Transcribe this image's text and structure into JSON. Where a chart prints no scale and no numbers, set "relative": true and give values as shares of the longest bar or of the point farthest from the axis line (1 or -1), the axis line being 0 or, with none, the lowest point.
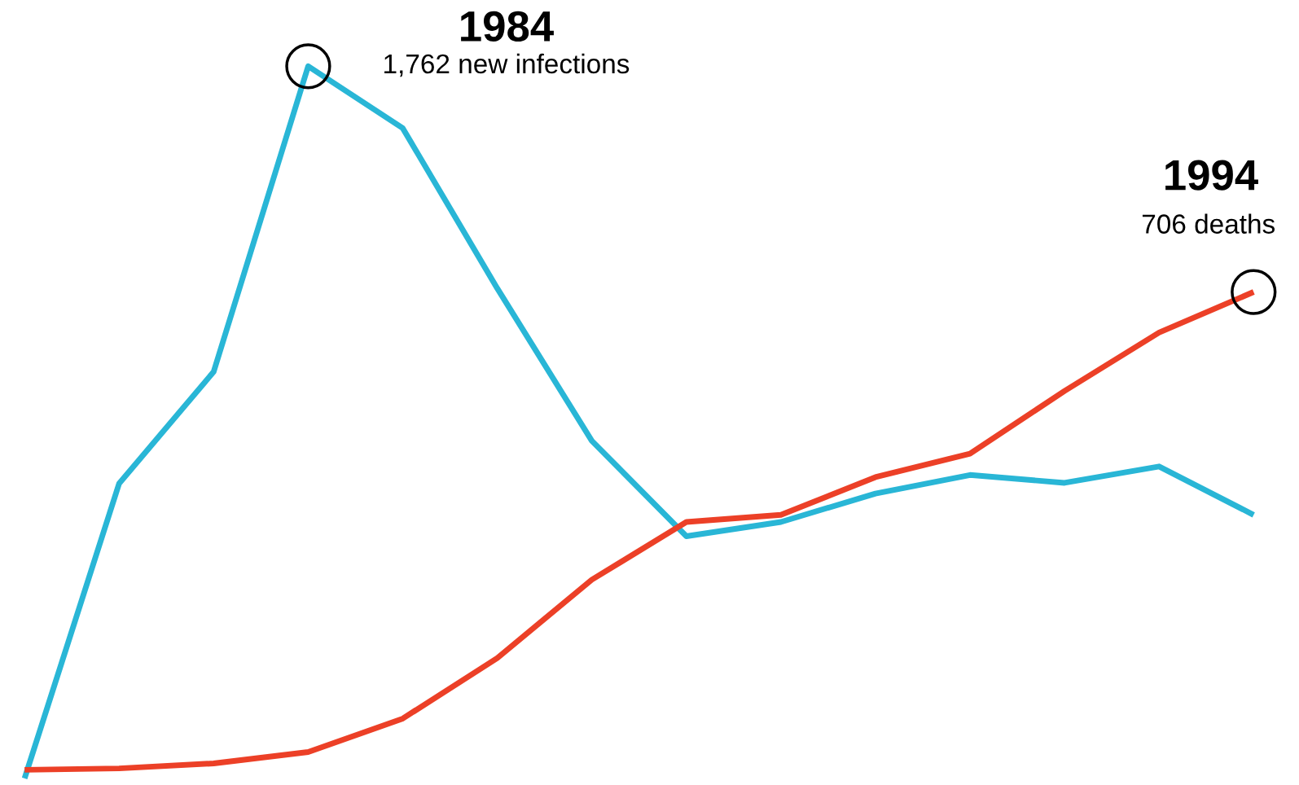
{
  "chart_data": {
    "type": "line",
    "relative": true,
    "categories": [
      null,
      null,
      null,
      null,
      null,
      null,
      null,
      null,
      null,
      null,
      null,
      null,
      null,
      null
    ],
    "marker": "none",
    "line_style": "solid",
    "series": [
      {
        "color": "#29b6d6",
        "values": [
          0,
          0.414,
          0.571,
          1,
          0.913,
          0.688,
          0.474,
          0.34,
          0.36,
          0.4,
          0.426,
          0.415,
          0.438,
          0.37
        ]
      },
      {
        "color": "#ec4027",
        "values": [
          0.012,
          0.014,
          0.021,
          0.037,
          0.084,
          0.169,
          0.279,
          0.36,
          0.37,
          0.423,
          0.456,
          0.544,
          0.626,
          0.683
        ]
      }
    ],
    "annotations": [
      "1984",
      "1,762 new infections",
      "1994",
      "706 deaths"
    ]
  }
}
